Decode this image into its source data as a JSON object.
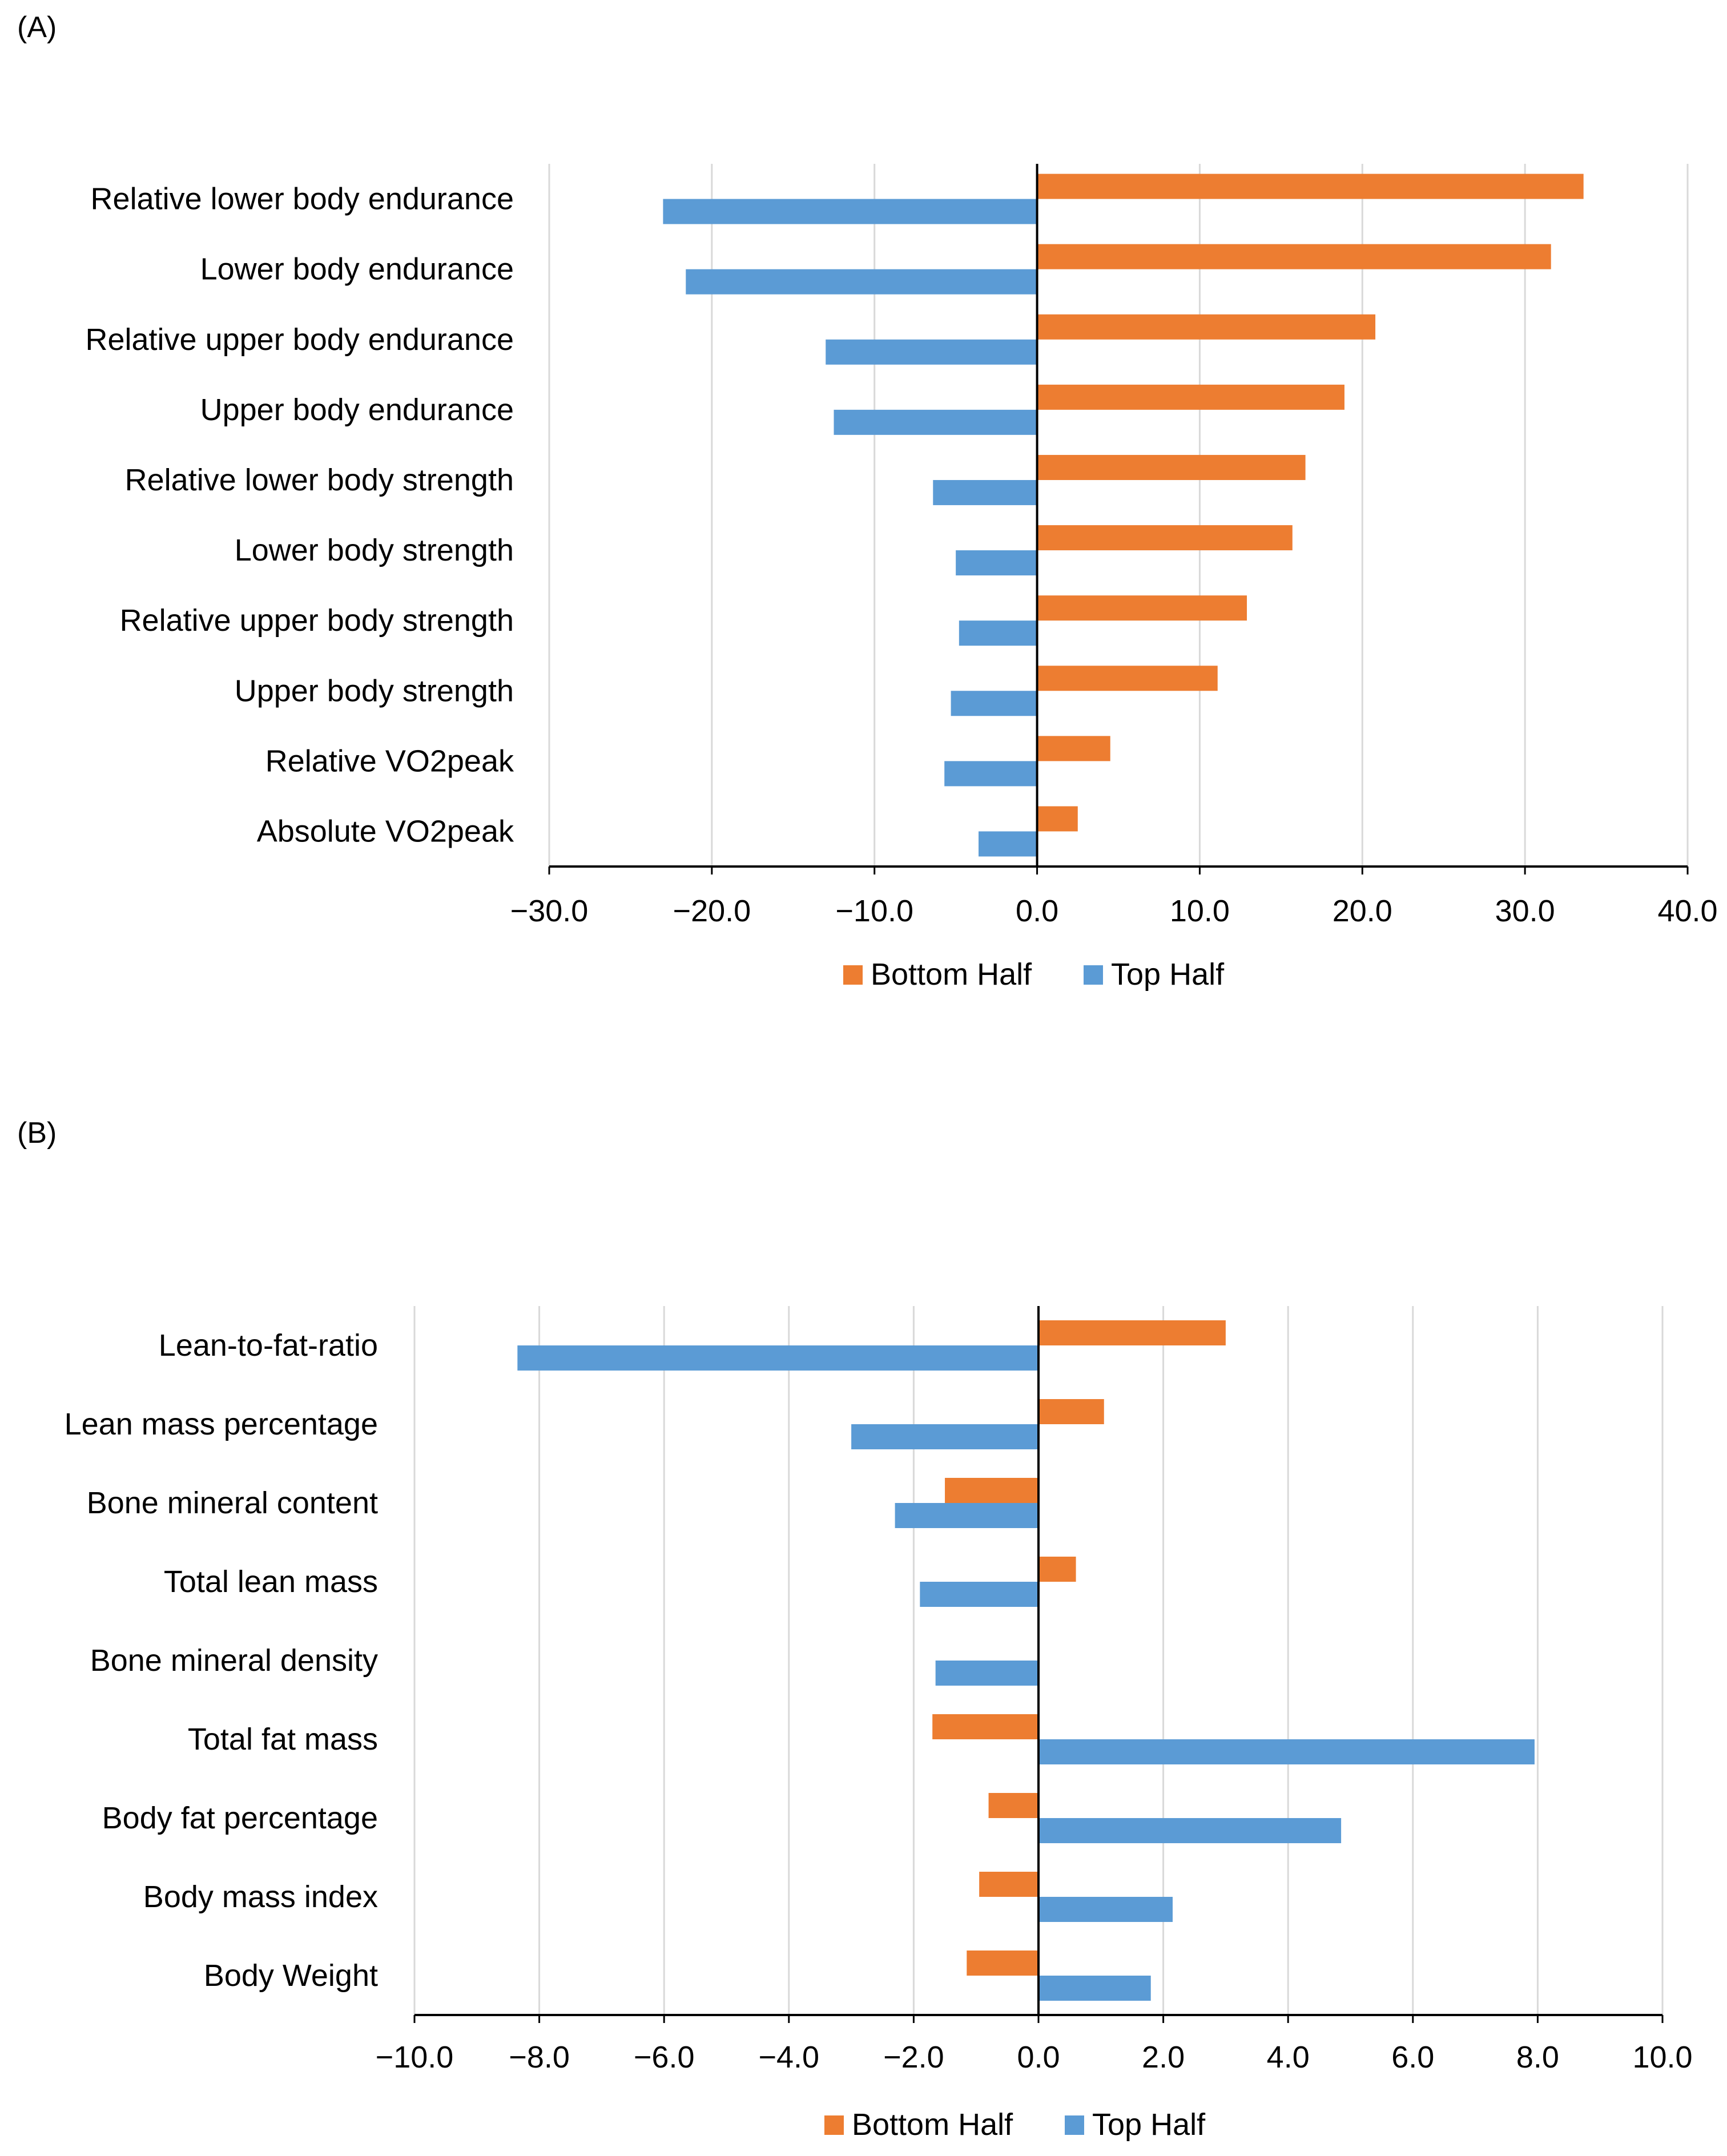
{
  "colors": {
    "bottom_half": "#ED7D31",
    "top_half": "#5B9BD5",
    "grid": "#D9D9D9",
    "axis": "#000000"
  },
  "chart_data": [
    {
      "type": "bar",
      "orientation": "horizontal",
      "panel_label": "(A)",
      "categories": [
        "Relative lower body endurance",
        "Lower body endurance",
        "Relative upper body endurance",
        "Upper body endurance",
        "Relative lower body strength",
        "Lower body strength",
        "Relative upper body strength",
        "Upper body strength",
        "Relative VO2peak",
        "Absolute VO2peak"
      ],
      "series": [
        {
          "name": "Bottom Half",
          "values": [
            33.6,
            31.6,
            20.8,
            18.9,
            16.5,
            15.7,
            12.9,
            11.1,
            4.5,
            2.5
          ]
        },
        {
          "name": "Top Half",
          "values": [
            -23.0,
            -21.6,
            -13.0,
            -12.5,
            -6.4,
            -5.0,
            -4.8,
            -5.3,
            -5.7,
            -3.6
          ]
        }
      ],
      "xlim": [
        -30,
        40
      ],
      "xticks": [
        -30,
        -20,
        -10,
        0,
        10,
        20,
        30,
        40
      ],
      "xtick_labels": [
        "−30.0",
        "−20.0",
        "−10.0",
        "0.0",
        "10.0",
        "20.0",
        "30.0",
        "40.0"
      ],
      "legend": [
        "Bottom Half",
        "Top Half"
      ],
      "legend_position": "bottom-center",
      "grid": true,
      "title": "",
      "xlabel": "",
      "ylabel": ""
    },
    {
      "type": "bar",
      "orientation": "horizontal",
      "panel_label": "(B)",
      "categories": [
        "Lean-to-fat-ratio",
        "Lean mass percentage",
        "Bone mineral content",
        "Total lean mass",
        "Bone mineral density",
        "Total fat mass",
        "Body fat percentage",
        "Body mass index",
        "Body Weight"
      ],
      "series": [
        {
          "name": "Bottom Half",
          "values": [
            3.0,
            1.05,
            -1.5,
            0.6,
            0.0,
            -1.7,
            -0.8,
            -0.95,
            -1.15
          ]
        },
        {
          "name": "Top Half",
          "values": [
            -8.35,
            -3.0,
            -2.3,
            -1.9,
            -1.65,
            7.95,
            4.85,
            2.15,
            1.8
          ]
        }
      ],
      "xlim": [
        -10,
        10
      ],
      "xticks": [
        -10,
        -8,
        -6,
        -4,
        -2,
        0,
        2,
        4,
        6,
        8,
        10
      ],
      "xtick_labels": [
        "−10.0",
        "−8.0",
        "−6.0",
        "−4.0",
        "−2.0",
        "0.0",
        "2.0",
        "4.0",
        "6.0",
        "8.0",
        "10.0"
      ],
      "legend": [
        "Bottom Half",
        "Top Half"
      ],
      "legend_position": "bottom-center",
      "grid": true,
      "title": "",
      "xlabel": "",
      "ylabel": ""
    }
  ]
}
